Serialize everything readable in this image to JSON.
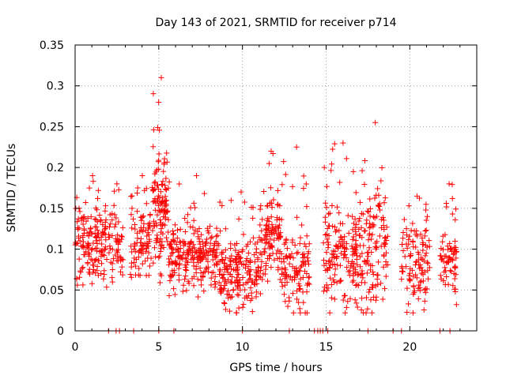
{
  "chart_data": {
    "type": "scatter",
    "title": "Day 143 of 2021, SRMTID for receiver p714",
    "xlabel": "GPS time / hours",
    "ylabel": "SRMTID / TECUs",
    "xlim": [
      0,
      24
    ],
    "ylim": [
      0,
      0.35
    ],
    "x_ticks": [
      0,
      5,
      10,
      15,
      20
    ],
    "x_tick_labels": [
      "0",
      "5",
      "10",
      "15",
      "20"
    ],
    "y_ticks": [
      0,
      0.05,
      0.1,
      0.15,
      0.2,
      0.25,
      0.3,
      0.35
    ],
    "y_tick_labels": [
      "0",
      "0.05",
      "0.1",
      "0.15",
      "0.2",
      "0.25",
      "0.3",
      "0.35"
    ],
    "grid": true,
    "marker": "+",
    "marker_color": "#ff0000",
    "segments": [
      {
        "start": 0.0,
        "end": 1.9,
        "mean": 0.105,
        "spread": 0.03,
        "count": 150,
        "max": 0.19
      },
      {
        "start": 2.0,
        "end": 2.9,
        "mean": 0.105,
        "spread": 0.03,
        "count": 55,
        "max": 0.18
      },
      {
        "start": 3.3,
        "end": 4.6,
        "mean": 0.105,
        "spread": 0.03,
        "count": 90,
        "max": 0.19
      },
      {
        "start": 4.6,
        "end": 5.6,
        "mean": 0.15,
        "spread": 0.05,
        "count": 120,
        "max": 0.31
      },
      {
        "start": 5.6,
        "end": 8.6,
        "mean": 0.09,
        "spread": 0.03,
        "count": 230,
        "max": 0.19
      },
      {
        "start": 8.6,
        "end": 11.0,
        "mean": 0.072,
        "spread": 0.03,
        "count": 190,
        "max": 0.17
      },
      {
        "start": 11.0,
        "end": 12.3,
        "mean": 0.11,
        "spread": 0.04,
        "count": 110,
        "max": 0.22
      },
      {
        "start": 12.3,
        "end": 14.0,
        "mean": 0.072,
        "spread": 0.03,
        "count": 120,
        "max": 0.225
      },
      {
        "start": 14.8,
        "end": 17.0,
        "mean": 0.095,
        "spread": 0.04,
        "count": 170,
        "max": 0.23
      },
      {
        "start": 17.0,
        "end": 18.7,
        "mean": 0.1,
        "spread": 0.045,
        "count": 130,
        "max": 0.255
      },
      {
        "start": 19.5,
        "end": 21.2,
        "mean": 0.085,
        "spread": 0.035,
        "count": 110,
        "max": 0.165
      },
      {
        "start": 21.8,
        "end": 22.8,
        "mean": 0.08,
        "spread": 0.025,
        "count": 70,
        "max": 0.18
      }
    ],
    "baseline_marks": [
      2.0,
      2.45,
      2.65,
      3.5,
      5.0,
      5.9,
      10.0,
      12.8,
      14.3,
      14.5,
      14.65,
      14.8,
      15.1,
      17.5,
      19.0,
      19.5,
      21.8,
      22.4
    ]
  }
}
